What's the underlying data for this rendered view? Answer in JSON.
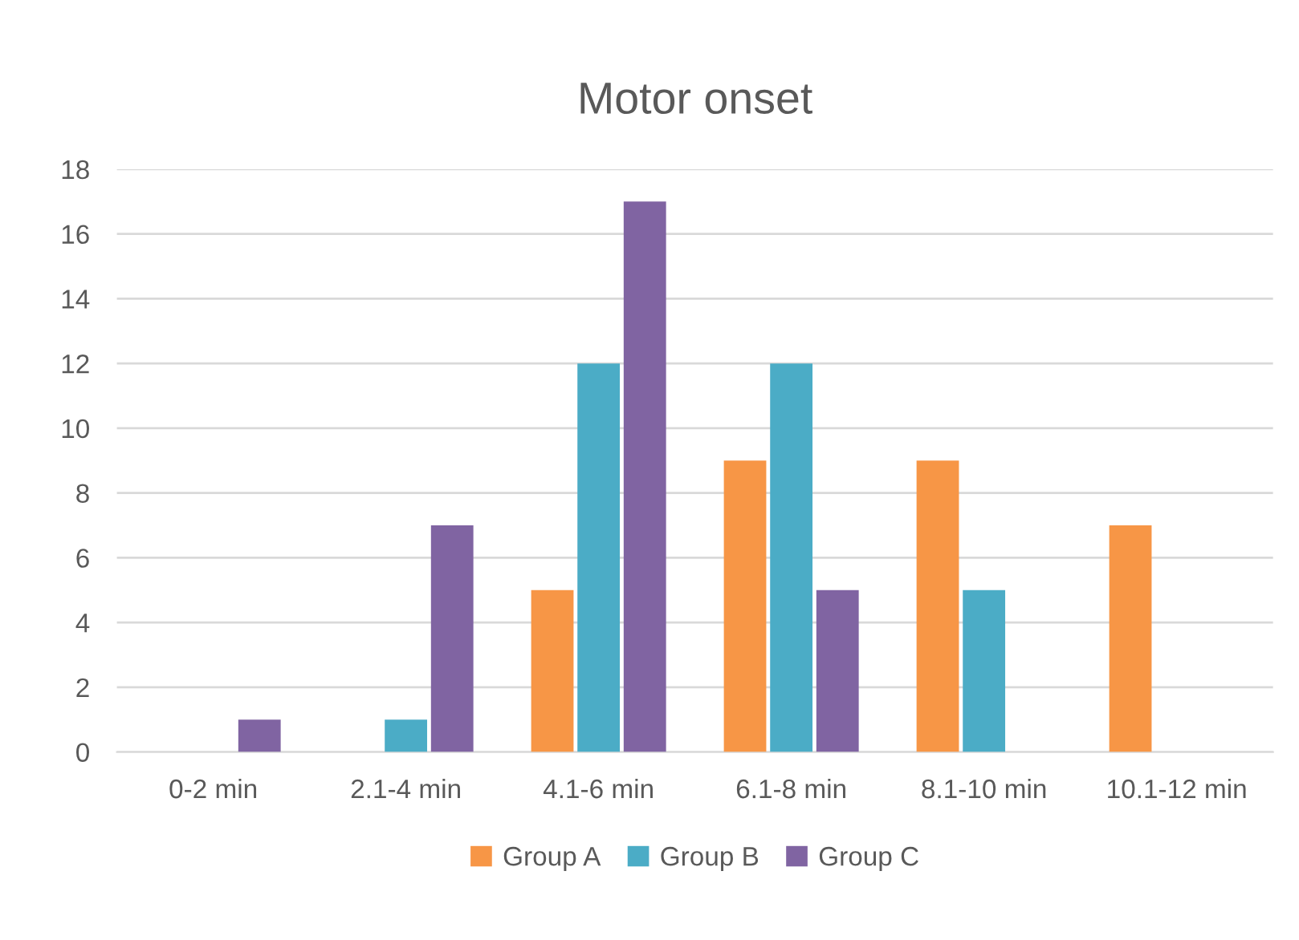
{
  "chart_data": {
    "type": "bar",
    "title": "Motor onset",
    "categories": [
      "0-2 min",
      "2.1-4 min",
      "4.1-6 min",
      "6.1-8 min",
      "8.1-10 min",
      "10.1-12 min"
    ],
    "series": [
      {
        "name": "Group A",
        "color": "#f79646",
        "values": [
          0,
          0,
          5,
          9,
          9,
          7
        ]
      },
      {
        "name": "Group B",
        "color": "#4bacc6",
        "values": [
          0,
          1,
          12,
          12,
          5,
          0
        ]
      },
      {
        "name": "Group C",
        "color": "#8064a2",
        "values": [
          1,
          7,
          17,
          5,
          0,
          0
        ]
      }
    ],
    "ylim": [
      0,
      18
    ],
    "yticks": [
      0,
      2,
      4,
      6,
      8,
      10,
      12,
      14,
      16,
      18
    ],
    "grid": "y",
    "legend": "bottom"
  }
}
